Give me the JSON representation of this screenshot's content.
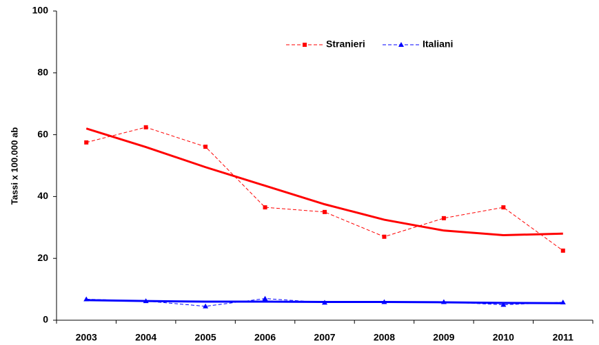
{
  "chart_data": {
    "type": "line",
    "y_label": "Tassi x 100.000 ab",
    "categories": [
      "2003",
      "2004",
      "2005",
      "2006",
      "2007",
      "2008",
      "2009",
      "2010",
      "2011"
    ],
    "series": [
      {
        "name": "Stranieri",
        "color": "#ff0000",
        "marker": "square",
        "values": [
          57.5,
          62.4,
          56.1,
          36.5,
          35,
          27,
          33,
          36.5,
          22.5
        ],
        "trend_values": [
          62,
          56,
          49.5,
          43.5,
          37.5,
          32.5,
          29,
          27.5,
          28
        ]
      },
      {
        "name": "Italiani",
        "color": "#0000ff",
        "marker": "triangle",
        "values": [
          6.8,
          6.2,
          4.5,
          7,
          5.7,
          5.9,
          5.9,
          5,
          5.8
        ],
        "trend_values": [
          6.5,
          6.2,
          6,
          6,
          5.9,
          5.9,
          5.8,
          5.6,
          5.5
        ]
      }
    ],
    "ylim": [
      0,
      100
    ],
    "yticks": [
      0,
      20,
      40,
      60,
      80,
      100
    ],
    "grid": false,
    "legend": "top"
  }
}
